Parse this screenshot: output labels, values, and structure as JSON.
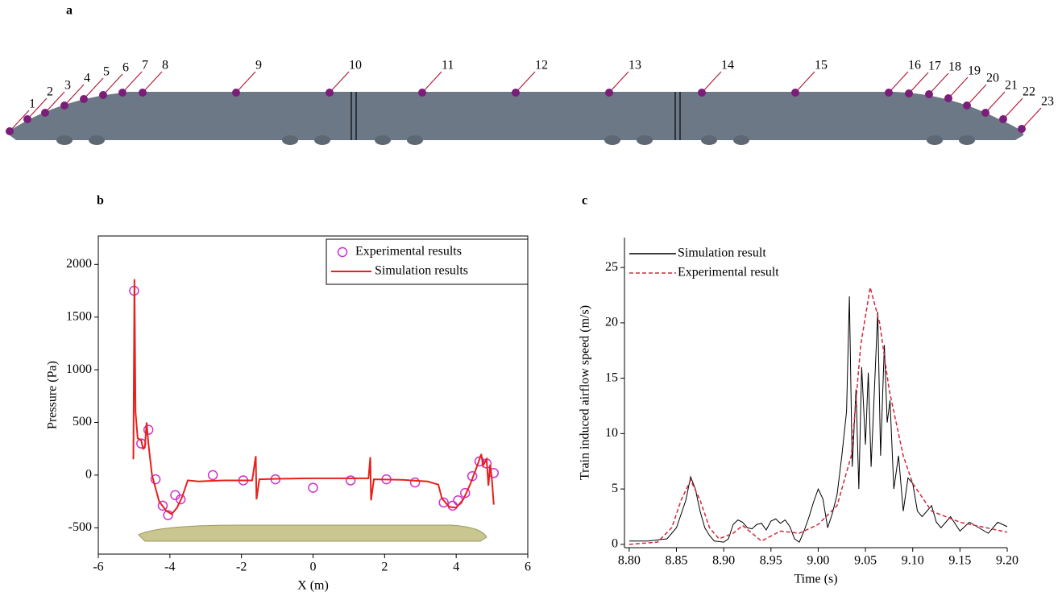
{
  "diagram": {
    "label": "a",
    "points": [
      "1",
      "2",
      "3",
      "4",
      "5",
      "6",
      "7",
      "8",
      "9",
      "10",
      "11",
      "12",
      "13",
      "14",
      "15",
      "16",
      "17",
      "18",
      "19",
      "20",
      "21",
      "22",
      "23"
    ]
  },
  "chart_data": [
    {
      "type": "line",
      "title": "b",
      "xlabel": "X (m)",
      "ylabel": "Pressure (Pa)",
      "xlim": [
        -6,
        6
      ],
      "ylim": [
        -750,
        2270
      ],
      "xticks": [
        -6,
        -4,
        -2,
        0,
        2,
        4,
        6
      ],
      "yticks": [
        -500,
        0,
        500,
        1000,
        1500,
        2000
      ],
      "legend": "upper right",
      "legend_frame": true,
      "frame": true,
      "series": [
        {
          "name": "Experimental results",
          "color": "#cc33cc",
          "style": "markers",
          "x": [
            -5,
            -4.8,
            -4.6,
            -4.4,
            -4.2,
            -4.05,
            -3.85,
            -3.7,
            -2.8,
            -1.95,
            -1.05,
            0,
            1.05,
            2.05,
            2.85,
            3.65,
            3.9,
            4.05,
            4.25,
            4.45,
            4.65,
            4.85,
            5.05
          ],
          "values": [
            1750,
            300,
            430,
            -40,
            -290,
            -380,
            -190,
            -230,
            0,
            -50,
            -40,
            -120,
            -50,
            -40,
            -70,
            -260,
            -290,
            -240,
            -170,
            -10,
            130,
            110,
            20
          ]
        },
        {
          "name": "Simulation results",
          "color": "#e8201a",
          "style": "solid",
          "x": [
            -5.02,
            -4.99,
            -4.96,
            -4.9,
            -4.8,
            -4.75,
            -4.7,
            -4.65,
            -4.6,
            -4.5,
            -4.3,
            -4.1,
            -3.95,
            -3.8,
            -3.65,
            -3.55,
            -3.5,
            -3.2,
            -2.5,
            -1.7,
            -1.6,
            -1.58,
            -1.5,
            -1.0,
            0,
            1.0,
            1.55,
            1.6,
            1.62,
            1.7,
            2.5,
            3.2,
            3.5,
            3.6,
            3.8,
            4.0,
            4.2,
            4.4,
            4.6,
            4.7,
            4.75,
            4.85,
            4.9,
            4.95,
            5.0,
            5.05
          ],
          "values": [
            150,
            1860,
            600,
            350,
            330,
            250,
            260,
            500,
            300,
            0,
            -250,
            -340,
            -370,
            -310,
            -200,
            -100,
            -50,
            -60,
            -50,
            -50,
            180,
            -230,
            -40,
            -35,
            -30,
            -30,
            -30,
            170,
            -240,
            -40,
            -45,
            -60,
            -90,
            -220,
            -300,
            -310,
            -230,
            -80,
            100,
            200,
            90,
            150,
            -100,
            100,
            -50,
            -280
          ]
        }
      ]
    },
    {
      "type": "line",
      "title": "c",
      "xlabel": "Time (s)",
      "ylabel": "Train induced airflow speed (m/s)",
      "xlim": [
        8.795,
        9.2
      ],
      "ylim": [
        -0.3,
        27.7
      ],
      "xticks": [
        {
          "value": 8.8,
          "label": "8.80"
        },
        8.85,
        {
          "value": 8.9,
          "label": "8.90"
        },
        8.95,
        {
          "value": 9.0,
          "label": "9.00"
        },
        9.05,
        {
          "value": 9.1,
          "label": "9.10"
        },
        9.15,
        {
          "value": 9.2,
          "label": "9.20"
        }
      ],
      "yticks": [
        0,
        5,
        10,
        15,
        20,
        25
      ],
      "legend": "upper left",
      "legend_frame": false,
      "frame": false,
      "series": [
        {
          "name": "Simulation result",
          "color": "#000000",
          "style": "solid",
          "x": [
            8.8,
            8.82,
            8.84,
            8.85,
            8.86,
            8.865,
            8.87,
            8.875,
            8.88,
            8.885,
            8.89,
            8.9,
            8.905,
            8.91,
            8.915,
            8.92,
            8.925,
            8.93,
            8.935,
            8.94,
            8.945,
            8.95,
            8.955,
            8.96,
            8.965,
            8.97,
            8.975,
            8.98,
            8.985,
            8.99,
            8.995,
            9.0,
            9.005,
            9.01,
            9.015,
            9.02,
            9.025,
            9.03,
            9.033,
            9.036,
            9.04,
            9.043,
            9.046,
            9.05,
            9.053,
            9.056,
            9.06,
            9.063,
            9.066,
            9.07,
            9.073,
            9.076,
            9.08,
            9.085,
            9.09,
            9.095,
            9.1,
            9.105,
            9.11,
            9.12,
            9.125,
            9.13,
            9.14,
            9.15,
            9.16,
            9.17,
            9.18,
            9.19,
            9.2
          ],
          "values": [
            0.3,
            0.3,
            0.5,
            1.5,
            4,
            6.1,
            5,
            3,
            1.5,
            0.8,
            0.3,
            0.2,
            0.5,
            1.8,
            2.2,
            2,
            1.5,
            1.4,
            1.8,
            1.9,
            1.3,
            2.1,
            2.3,
            1.9,
            2.2,
            1.6,
            0.5,
            0.2,
            1.2,
            2.4,
            3.8,
            5,
            4.1,
            1.5,
            2.8,
            4.5,
            8,
            12,
            22.4,
            7,
            14,
            5,
            16,
            9,
            15.5,
            7,
            15,
            21,
            8,
            18,
            11,
            13,
            5,
            8,
            3,
            6,
            5.5,
            3,
            2.5,
            3.5,
            2,
            1.5,
            2.5,
            1.2,
            2,
            1.5,
            1,
            2,
            1.6
          ]
        },
        {
          "name": "Experimental result",
          "color": "#d0283c",
          "style": "dashed",
          "x": [
            8.8,
            8.83,
            8.845,
            8.855,
            8.865,
            8.875,
            8.885,
            8.895,
            8.91,
            8.92,
            8.93,
            8.94,
            8.96,
            8.98,
            9.0,
            9.02,
            9.035,
            9.045,
            9.055,
            9.065,
            9.075,
            9.09,
            9.1,
            9.12,
            9.15,
            9.2
          ],
          "values": [
            0,
            0.2,
            1.5,
            4,
            5.8,
            4,
            1.5,
            0.5,
            1,
            1.7,
            1,
            0.3,
            1.2,
            1,
            1.8,
            3.5,
            8,
            18,
            23.2,
            20,
            14,
            8,
            5.5,
            3,
            2,
            1.1
          ]
        }
      ]
    }
  ]
}
